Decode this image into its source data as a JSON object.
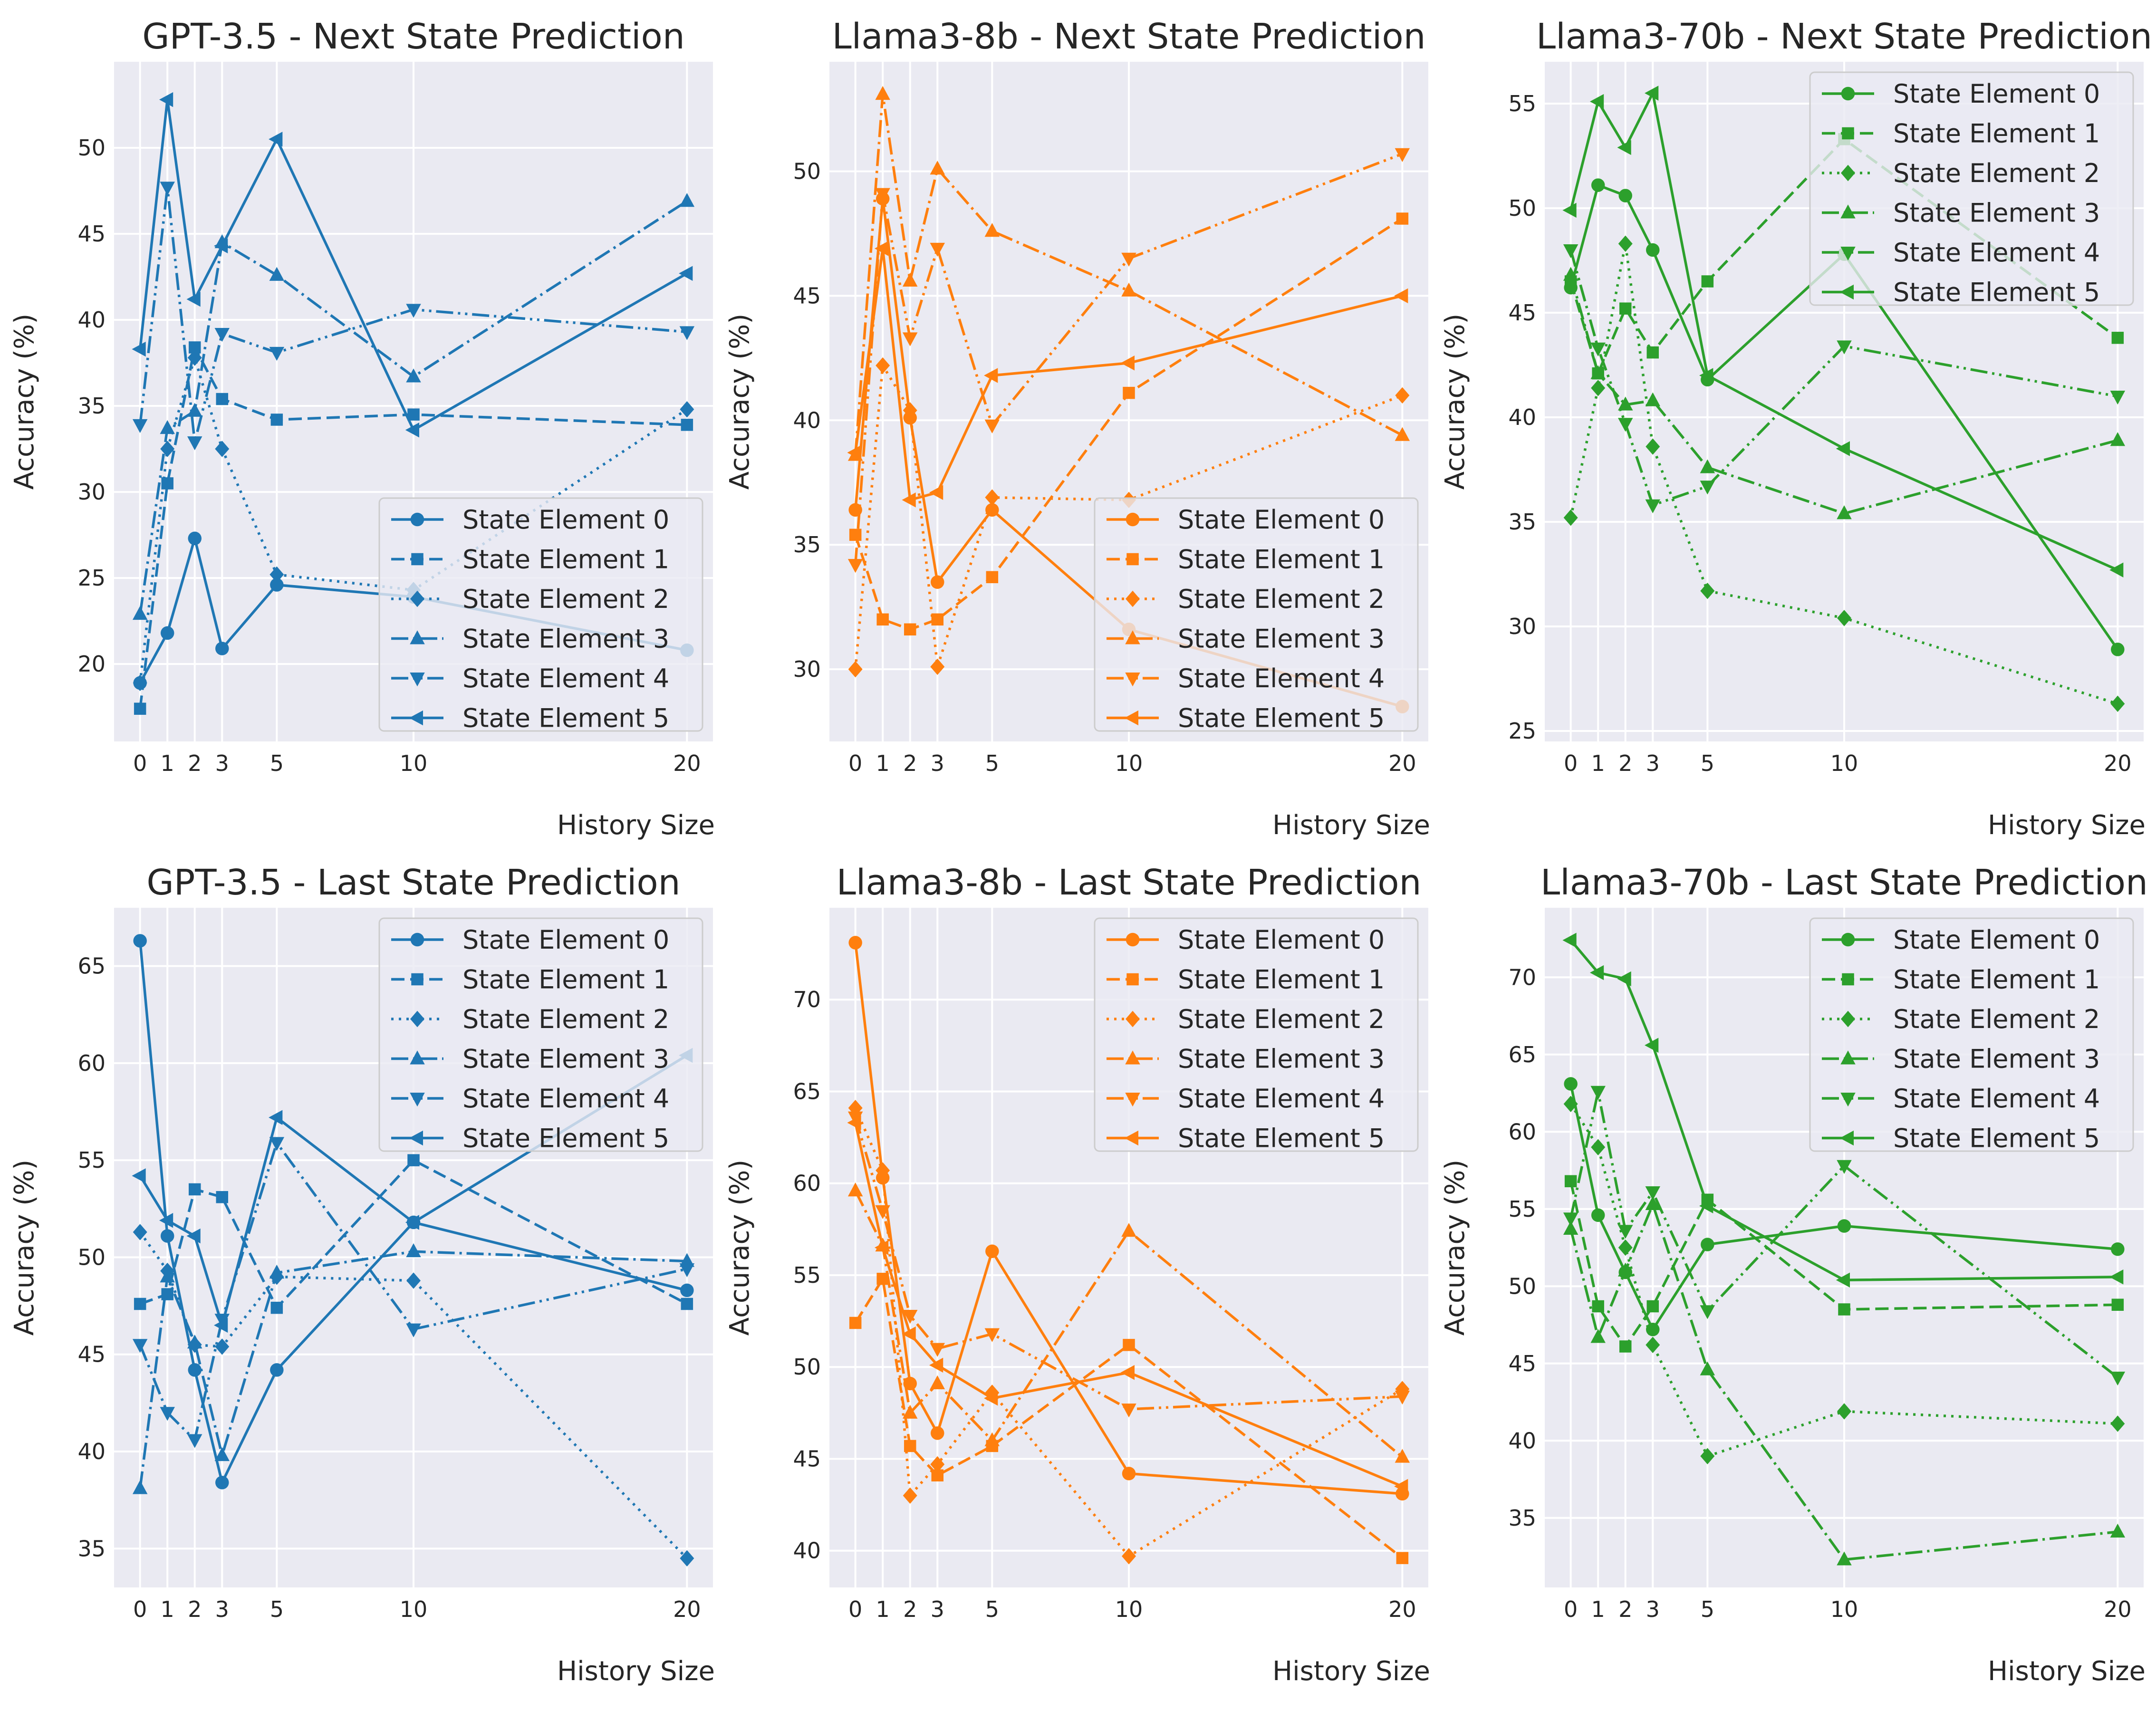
{
  "x_values": [
    0,
    1,
    2,
    3,
    5,
    10,
    20
  ],
  "chart_data": [
    {
      "type": "line",
      "title": "GPT-3.5 - Next State Prediction",
      "xlabel": "History Size",
      "ylabel": "Accuracy (%)",
      "color": "#1f77b4",
      "ylim": [
        15.5,
        55
      ],
      "yticks": [
        20,
        25,
        30,
        35,
        40,
        45,
        50
      ],
      "legend_loc": "lower-right",
      "x": [
        0,
        1,
        2,
        3,
        5,
        10,
        20
      ],
      "series": [
        {
          "name": "State Element 0",
          "values": [
            18.9,
            21.8,
            27.3,
            20.9,
            24.6,
            23.9,
            20.8
          ]
        },
        {
          "name": "State Element 1",
          "values": [
            17.4,
            30.5,
            38.4,
            35.4,
            34.2,
            34.5,
            33.9
          ]
        },
        {
          "name": "State Element 2",
          "values": [
            18.9,
            32.5,
            37.8,
            32.5,
            25.2,
            24.3,
            34.8
          ]
        },
        {
          "name": "State Element 3",
          "values": [
            22.9,
            33.7,
            34.7,
            44.5,
            42.6,
            36.7,
            46.9
          ]
        },
        {
          "name": "State Element 4",
          "values": [
            33.9,
            47.7,
            32.9,
            39.2,
            38.1,
            40.6,
            39.3
          ]
        },
        {
          "name": "State Element 5",
          "values": [
            38.3,
            52.8,
            41.2,
            44.3,
            50.5,
            33.6,
            42.7
          ]
        }
      ]
    },
    {
      "type": "line",
      "title": "Llama3-8b - Next State Prediction",
      "xlabel": "History Size",
      "ylabel": "Accuracy (%)",
      "color": "#ff7f0e",
      "ylim": [
        27.1,
        54.4
      ],
      "yticks": [
        30,
        35,
        40,
        45,
        50
      ],
      "legend_loc": "lower-right",
      "x": [
        0,
        1,
        2,
        3,
        5,
        10,
        20
      ],
      "series": [
        {
          "name": "State Element 0",
          "values": [
            36.4,
            48.9,
            40.1,
            33.5,
            36.4,
            31.6,
            28.5
          ]
        },
        {
          "name": "State Element 1",
          "values": [
            35.4,
            32.0,
            31.6,
            32.0,
            33.7,
            41.1,
            48.1
          ]
        },
        {
          "name": "State Element 2",
          "values": [
            30.0,
            42.2,
            40.4,
            30.1,
            36.9,
            36.8,
            41.0
          ]
        },
        {
          "name": "State Element 3",
          "values": [
            38.6,
            53.1,
            45.6,
            50.1,
            47.6,
            45.2,
            39.4
          ]
        },
        {
          "name": "State Element 4",
          "values": [
            34.2,
            49.1,
            43.3,
            46.9,
            39.8,
            46.5,
            50.7
          ]
        },
        {
          "name": "State Element 5",
          "values": [
            38.7,
            46.9,
            36.8,
            37.1,
            41.8,
            42.3,
            45.0
          ]
        }
      ]
    },
    {
      "type": "line",
      "title": "Llama3-70b - Next State Prediction",
      "xlabel": "History Size",
      "ylabel": "Accuracy (%)",
      "color": "#2ca02c",
      "ylim": [
        24.5,
        57
      ],
      "yticks": [
        25,
        30,
        35,
        40,
        45,
        50,
        55
      ],
      "legend_loc": "upper-right",
      "x": [
        0,
        1,
        2,
        3,
        5,
        10,
        20
      ],
      "series": [
        {
          "name": "State Element 0",
          "values": [
            46.2,
            51.1,
            50.6,
            48.0,
            41.8,
            47.8,
            28.9
          ]
        },
        {
          "name": "State Element 1",
          "values": [
            46.5,
            42.1,
            45.2,
            43.1,
            46.5,
            53.3,
            43.8
          ]
        },
        {
          "name": "State Element 2",
          "values": [
            35.2,
            41.4,
            48.3,
            38.6,
            31.7,
            30.4,
            26.3
          ]
        },
        {
          "name": "State Element 3",
          "values": [
            46.8,
            42.1,
            40.6,
            40.8,
            37.6,
            35.4,
            38.9
          ]
        },
        {
          "name": "State Element 4",
          "values": [
            48.0,
            43.3,
            39.7,
            35.8,
            36.7,
            43.4,
            41.0
          ]
        },
        {
          "name": "State Element 5",
          "values": [
            49.9,
            55.1,
            52.9,
            55.5,
            42.0,
            38.5,
            32.7
          ]
        }
      ]
    },
    {
      "type": "line",
      "title": "GPT-3.5 - Last State Prediction",
      "xlabel": "History Size",
      "ylabel": "Accuracy (%)",
      "color": "#1f77b4",
      "ylim": [
        33,
        68
      ],
      "yticks": [
        35,
        40,
        45,
        50,
        55,
        60,
        65
      ],
      "legend_loc": "upper-right",
      "x": [
        0,
        1,
        2,
        3,
        5,
        10,
        20
      ],
      "series": [
        {
          "name": "State Element 0",
          "values": [
            66.3,
            51.1,
            44.2,
            38.4,
            44.2,
            51.8,
            48.3
          ]
        },
        {
          "name": "State Element 1",
          "values": [
            47.6,
            48.1,
            53.5,
            53.1,
            47.4,
            55.0,
            47.6
          ]
        },
        {
          "name": "State Element 2",
          "values": [
            51.3,
            49.3,
            45.5,
            45.4,
            49.0,
            48.8,
            34.5
          ]
        },
        {
          "name": "State Element 3",
          "values": [
            38.1,
            49.0,
            45.6,
            39.8,
            49.2,
            50.3,
            49.8
          ]
        },
        {
          "name": "State Element 4",
          "values": [
            45.5,
            42.0,
            40.6,
            46.8,
            55.9,
            46.3,
            49.4
          ]
        },
        {
          "name": "State Element 5",
          "values": [
            54.2,
            51.9,
            51.1,
            46.5,
            57.2,
            51.8,
            60.4
          ]
        }
      ]
    },
    {
      "type": "line",
      "title": "Llama3-8b - Last State Prediction",
      "xlabel": "History Size",
      "ylabel": "Accuracy (%)",
      "color": "#ff7f0e",
      "ylim": [
        38,
        75
      ],
      "yticks": [
        40,
        45,
        50,
        55,
        60,
        65,
        70
      ],
      "legend_loc": "upper-right",
      "x": [
        0,
        1,
        2,
        3,
        5,
        10,
        20
      ],
      "series": [
        {
          "name": "State Element 0",
          "values": [
            73.1,
            60.3,
            49.1,
            46.4,
            56.3,
            44.2,
            43.1
          ]
        },
        {
          "name": "State Element 1",
          "values": [
            52.4,
            54.8,
            45.7,
            44.1,
            45.7,
            51.2,
            39.6
          ]
        },
        {
          "name": "State Element 2",
          "values": [
            64.1,
            60.7,
            43.0,
            44.7,
            48.6,
            39.7,
            48.8
          ]
        },
        {
          "name": "State Element 3",
          "values": [
            59.6,
            56.6,
            47.5,
            49.1,
            46.0,
            57.4,
            45.1
          ]
        },
        {
          "name": "State Element 4",
          "values": [
            63.6,
            58.5,
            52.8,
            51.0,
            51.8,
            47.7,
            48.4
          ]
        },
        {
          "name": "State Element 5",
          "values": [
            63.3,
            56.5,
            51.8,
            50.1,
            48.3,
            49.7,
            43.5
          ]
        }
      ]
    },
    {
      "type": "line",
      "title": "Llama3-70b - Last State Prediction",
      "xlabel": "History Size",
      "ylabel": "Accuracy (%)",
      "color": "#2ca02c",
      "ylim": [
        30.5,
        74.5
      ],
      "yticks": [
        35,
        40,
        45,
        50,
        55,
        60,
        65,
        70
      ],
      "legend_loc": "upper-right",
      "x": [
        0,
        1,
        2,
        3,
        5,
        10,
        20
      ],
      "series": [
        {
          "name": "State Element 0",
          "values": [
            63.1,
            54.6,
            50.9,
            47.2,
            52.7,
            53.9,
            52.4
          ]
        },
        {
          "name": "State Element 1",
          "values": [
            56.8,
            48.7,
            46.1,
            48.7,
            55.6,
            48.5,
            48.8
          ]
        },
        {
          "name": "State Element 2",
          "values": [
            61.8,
            59.0,
            52.5,
            46.2,
            39.0,
            41.9,
            41.1
          ]
        },
        {
          "name": "State Element 3",
          "values": [
            53.7,
            46.7,
            51.0,
            55.3,
            44.6,
            32.3,
            34.1
          ]
        },
        {
          "name": "State Element 4",
          "values": [
            54.4,
            62.6,
            53.6,
            56.1,
            48.4,
            57.8,
            44.1
          ]
        },
        {
          "name": "State Element 5",
          "values": [
            72.4,
            70.3,
            69.9,
            65.6,
            55.2,
            50.4,
            50.6
          ]
        }
      ]
    }
  ]
}
